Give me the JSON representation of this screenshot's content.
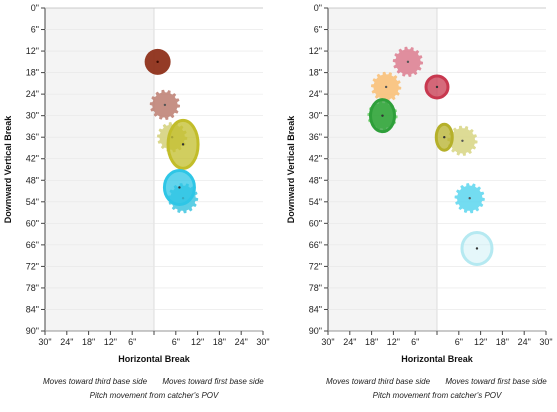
{
  "chart_data": [
    {
      "type": "scatter",
      "xlabel": "Horizontal Break",
      "ylabel": "Downward Vertical Break",
      "x_ticks": [
        "30\"",
        "24\"",
        "18\"",
        "12\"",
        "6\"",
        "",
        "6\"",
        "12\"",
        "18\"",
        "24\"",
        "30\""
      ],
      "y_ticks": [
        "0\"",
        "6\"",
        "12\"",
        "18\"",
        "24\"",
        "30\"",
        "36\"",
        "42\"",
        "48\"",
        "54\"",
        "60\"",
        "66\"",
        "72\"",
        "78\"",
        "84\"",
        "90\""
      ],
      "xlim": [
        -30,
        30
      ],
      "ylim": [
        0,
        90
      ],
      "shaded_region": "third base side (x < 0)",
      "caption_left": "Moves toward third base side",
      "caption_right": "Moves toward first base side",
      "caption_bottom": "Pitch movement from catcher's POV",
      "pitches": [
        {
          "x": 1,
          "y": 15,
          "color": "#8b2a14",
          "style": "solid"
        },
        {
          "x": 3,
          "y": 27,
          "color": "#bc7d70",
          "style": "dashed"
        },
        {
          "x": 5,
          "y": 36,
          "color": "#d4d078",
          "style": "dashed"
        },
        {
          "x": 8,
          "y": 38,
          "color": "#c2bd2a",
          "style": "outline"
        },
        {
          "x": 8,
          "y": 53,
          "color": "#3fc6e1",
          "style": "dashed"
        },
        {
          "x": 7,
          "y": 50,
          "color": "#2ec6e6",
          "style": "outline"
        }
      ]
    },
    {
      "type": "scatter",
      "xlabel": "Horizontal Break",
      "ylabel": "Downward Vertical Break",
      "x_ticks": [
        "30\"",
        "24\"",
        "18\"",
        "12\"",
        "6\"",
        "",
        "6\"",
        "12\"",
        "18\"",
        "24\"",
        "30\""
      ],
      "y_ticks": [
        "0\"",
        "6\"",
        "12\"",
        "18\"",
        "24\"",
        "30\"",
        "36\"",
        "42\"",
        "48\"",
        "54\"",
        "60\"",
        "66\"",
        "72\"",
        "78\"",
        "84\"",
        "90\""
      ],
      "xlim": [
        -30,
        30
      ],
      "ylim": [
        0,
        90
      ],
      "shaded_region": "third base side (x < 0)",
      "caption_left": "Moves toward third base side",
      "caption_right": "Moves toward first base side",
      "caption_bottom": "Pitch movement from catcher's POV",
      "pitches": [
        {
          "x": -8,
          "y": 15,
          "color": "#dc7b8e",
          "style": "dashed"
        },
        {
          "x": -14,
          "y": 22,
          "color": "#f9bd72",
          "style": "dashed"
        },
        {
          "x": 0,
          "y": 22,
          "color": "#c8384f",
          "style": "outline"
        },
        {
          "x": -15,
          "y": 30,
          "color": "#6fcf6a",
          "style": "dashed"
        },
        {
          "x": -15,
          "y": 30,
          "color": "#2e9f3a",
          "style": "outline"
        },
        {
          "x": 7,
          "y": 37,
          "color": "#d7d583",
          "style": "dashed"
        },
        {
          "x": 2,
          "y": 36,
          "color": "#b5b02a",
          "style": "outline"
        },
        {
          "x": 9,
          "y": 53,
          "color": "#5bd6ee",
          "style": "dashed"
        },
        {
          "x": 11,
          "y": 67,
          "color": "#b5e9f1",
          "style": "outline"
        }
      ]
    }
  ]
}
